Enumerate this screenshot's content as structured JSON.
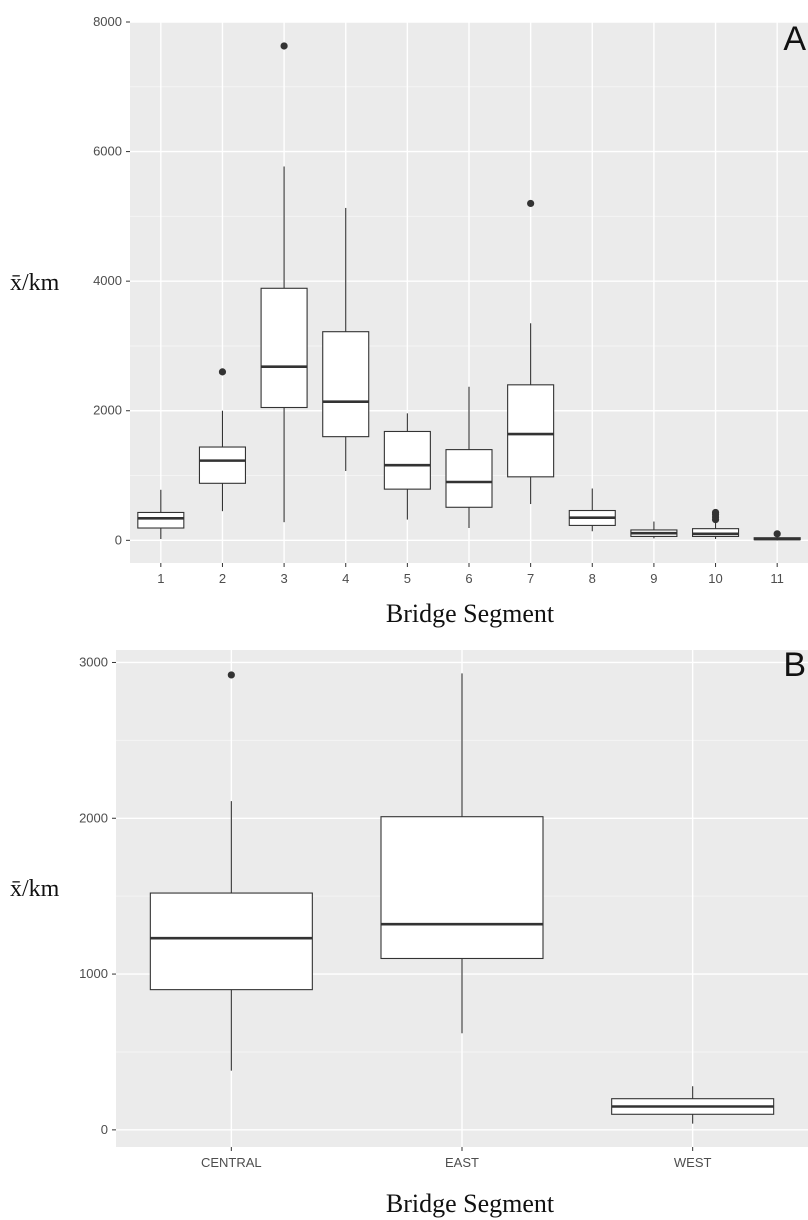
{
  "chart_data": [
    {
      "type": "box",
      "panel_label": "A",
      "xlabel": "Bridge Segment",
      "ylabel": "x̄/km",
      "ylim": [
        -350,
        8000
      ],
      "yticks": [
        0,
        2000,
        4000,
        6000,
        8000
      ],
      "grid": true,
      "categories": [
        "1",
        "2",
        "3",
        "4",
        "5",
        "6",
        "7",
        "8",
        "9",
        "10",
        "11"
      ],
      "boxes": [
        {
          "category": "1",
          "min": 20,
          "q1": 190,
          "median": 340,
          "q3": 430,
          "max": 780,
          "outliers": []
        },
        {
          "category": "2",
          "min": 450,
          "q1": 880,
          "median": 1230,
          "q3": 1440,
          "max": 2000,
          "outliers": [
            2600
          ]
        },
        {
          "category": "3",
          "min": 280,
          "q1": 2050,
          "median": 2680,
          "q3": 3890,
          "max": 5770,
          "outliers": [
            7630
          ]
        },
        {
          "category": "4",
          "min": 1070,
          "q1": 1600,
          "median": 2140,
          "q3": 3220,
          "max": 5130,
          "outliers": []
        },
        {
          "category": "5",
          "min": 320,
          "q1": 790,
          "median": 1160,
          "q3": 1680,
          "max": 1960,
          "outliers": []
        },
        {
          "category": "6",
          "min": 190,
          "q1": 510,
          "median": 900,
          "q3": 1400,
          "max": 2370,
          "outliers": []
        },
        {
          "category": "7",
          "min": 560,
          "q1": 980,
          "median": 1640,
          "q3": 2400,
          "max": 3350,
          "outliers": [
            5200
          ]
        },
        {
          "category": "8",
          "min": 140,
          "q1": 230,
          "median": 350,
          "q3": 460,
          "max": 800,
          "outliers": []
        },
        {
          "category": "9",
          "min": 30,
          "q1": 60,
          "median": 110,
          "q3": 160,
          "max": 290,
          "outliers": []
        },
        {
          "category": "10",
          "min": 20,
          "q1": 60,
          "median": 100,
          "q3": 180,
          "max": 280,
          "outliers": [
            320,
            360,
            400,
            430
          ]
        },
        {
          "category": "11",
          "min": 0,
          "q1": 10,
          "median": 20,
          "q3": 40,
          "max": 60,
          "outliers": [
            100
          ]
        }
      ]
    },
    {
      "type": "box",
      "panel_label": "B",
      "xlabel": "Bridge Segment",
      "ylabel": "x̄/km",
      "ylim": [
        -110,
        3080
      ],
      "yticks": [
        0,
        1000,
        2000,
        3000
      ],
      "grid": true,
      "categories": [
        "CENTRAL",
        "EAST",
        "WEST"
      ],
      "boxes": [
        {
          "category": "CENTRAL",
          "min": 380,
          "q1": 900,
          "median": 1230,
          "q3": 1520,
          "max": 2110,
          "outliers": [
            2920
          ]
        },
        {
          "category": "EAST",
          "min": 620,
          "q1": 1100,
          "median": 1320,
          "q3": 2010,
          "max": 2930,
          "outliers": []
        },
        {
          "category": "WEST",
          "min": 40,
          "q1": 100,
          "median": 150,
          "q3": 200,
          "max": 280,
          "outliers": []
        }
      ]
    }
  ],
  "colors": {
    "panel_bg": "#ebebeb",
    "grid_major": "#ffffff",
    "grid_minor": "#f4f4f4",
    "box_fill": "#ffffff",
    "box_stroke": "#333333",
    "outlier": "#333333"
  }
}
